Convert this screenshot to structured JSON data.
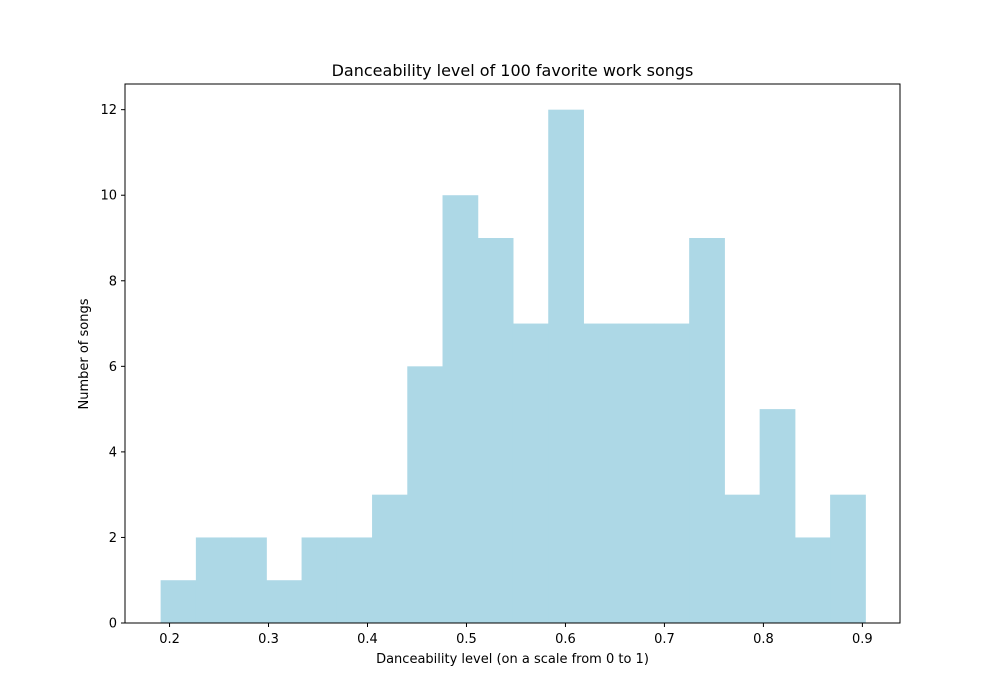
{
  "chart_data": {
    "type": "bar",
    "title": "Danceability level of 100 favorite work songs",
    "xlabel": "Danceability level (on a scale from 0 to 1)",
    "ylabel": "Number of songs",
    "bar_color": "#add8e6",
    "grid": false,
    "legend": "none",
    "xlim": [
      0.155,
      0.938
    ],
    "ylim": [
      0,
      12.6
    ],
    "xticks": [
      {
        "value": 0.2,
        "label": "0.2"
      },
      {
        "value": 0.3,
        "label": "0.3"
      },
      {
        "value": 0.4,
        "label": "0.4"
      },
      {
        "value": 0.5,
        "label": "0.5"
      },
      {
        "value": 0.6,
        "label": "0.6"
      },
      {
        "value": 0.7,
        "label": "0.7"
      },
      {
        "value": 0.8,
        "label": "0.8"
      },
      {
        "value": 0.9,
        "label": "0.9"
      }
    ],
    "yticks": [
      {
        "value": 0,
        "label": "0"
      },
      {
        "value": 2,
        "label": "2"
      },
      {
        "value": 4,
        "label": "4"
      },
      {
        "value": 6,
        "label": "6"
      },
      {
        "value": 8,
        "label": "8"
      },
      {
        "value": 10,
        "label": "10"
      },
      {
        "value": 12,
        "label": "12"
      }
    ],
    "bin_edges": [
      0.191,
      0.2266,
      0.2622,
      0.2978,
      0.3334,
      0.369,
      0.4046,
      0.4402,
      0.4758,
      0.5114,
      0.547,
      0.5826,
      0.6182,
      0.6538,
      0.6894,
      0.725,
      0.7606,
      0.7962,
      0.8318,
      0.8674,
      0.903
    ],
    "counts": [
      1,
      2,
      2,
      1,
      2,
      2,
      3,
      6,
      10,
      9,
      7,
      12,
      7,
      7,
      7,
      9,
      3,
      5,
      2,
      3
    ]
  }
}
